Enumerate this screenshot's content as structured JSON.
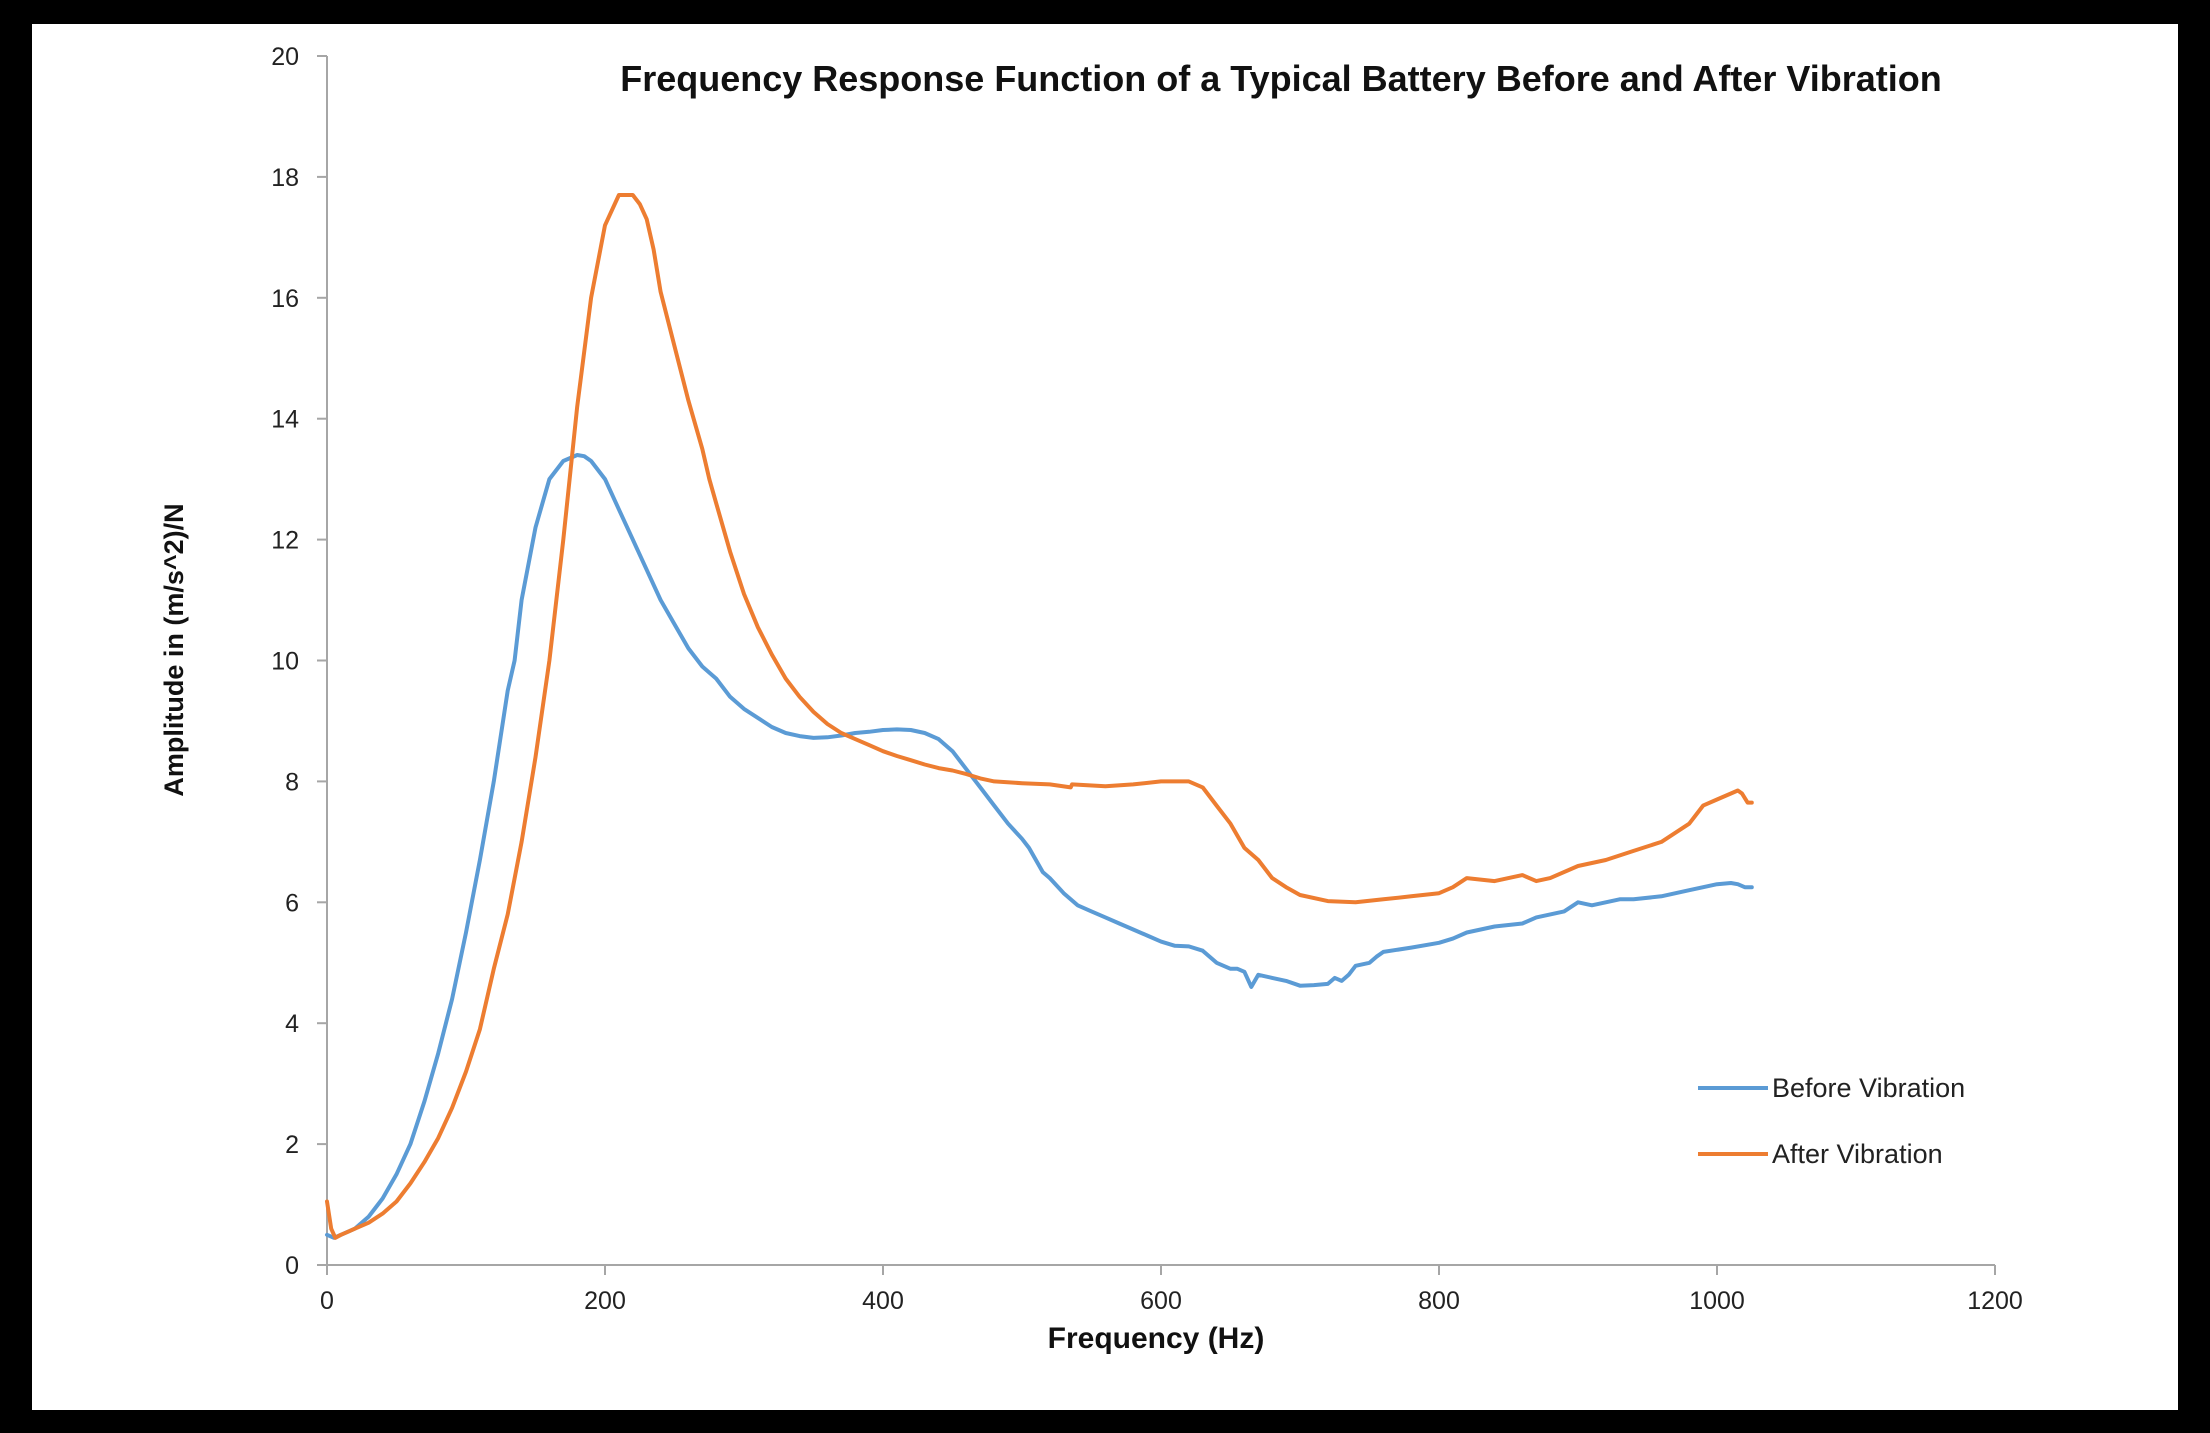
{
  "chart_data": {
    "type": "line",
    "title": "Frequency Response Function of a Typical Battery Before and After Vibration",
    "xlabel": "Frequency (Hz)",
    "ylabel": "Amplitude in (m/s^2)/N",
    "xlim": [
      0,
      1200
    ],
    "ylim": [
      0,
      20
    ],
    "xticks": [
      0,
      200,
      400,
      600,
      800,
      1000,
      1200
    ],
    "yticks": [
      0,
      2,
      4,
      6,
      8,
      10,
      12,
      14,
      16,
      18,
      20
    ],
    "grid": false,
    "legend_position": "bottom-right",
    "series": [
      {
        "name": "Before Vibration",
        "color": "#5B9BD5",
        "x": [
          0,
          5,
          10,
          20,
          30,
          40,
          50,
          60,
          70,
          80,
          90,
          100,
          110,
          120,
          130,
          135,
          140,
          150,
          160,
          170,
          180,
          185,
          190,
          200,
          210,
          220,
          230,
          240,
          250,
          260,
          270,
          275,
          280,
          290,
          300,
          310,
          320,
          330,
          340,
          350,
          360,
          370,
          380,
          390,
          400,
          410,
          420,
          430,
          440,
          450,
          460,
          470,
          480,
          490,
          500,
          505,
          510,
          515,
          520,
          530,
          540,
          550,
          560,
          570,
          580,
          590,
          600,
          610,
          620,
          630,
          640,
          650,
          655,
          660,
          665,
          670,
          680,
          690,
          700,
          710,
          720,
          725,
          730,
          735,
          740,
          750,
          755,
          760,
          780,
          800,
          810,
          820,
          840,
          860,
          870,
          880,
          890,
          900,
          910,
          920,
          930,
          940,
          960,
          980,
          1000,
          1010,
          1015,
          1020,
          1025
        ],
        "values": [
          0.5,
          0.45,
          0.5,
          0.6,
          0.8,
          1.1,
          1.5,
          2.0,
          2.7,
          3.5,
          4.4,
          5.5,
          6.7,
          8.0,
          9.5,
          10.0,
          11.0,
          12.2,
          13.0,
          13.3,
          13.4,
          13.38,
          13.3,
          13.0,
          12.5,
          12.0,
          11.5,
          11.0,
          10.6,
          10.2,
          9.9,
          9.8,
          9.7,
          9.4,
          9.2,
          9.05,
          8.9,
          8.8,
          8.75,
          8.72,
          8.73,
          8.76,
          8.8,
          8.82,
          8.85,
          8.86,
          8.85,
          8.8,
          8.7,
          8.5,
          8.2,
          7.9,
          7.6,
          7.3,
          7.05,
          6.9,
          6.7,
          6.5,
          6.4,
          6.15,
          5.95,
          5.85,
          5.75,
          5.65,
          5.55,
          5.45,
          5.35,
          5.28,
          5.27,
          5.2,
          5.0,
          4.9,
          4.9,
          4.85,
          4.6,
          4.8,
          4.75,
          4.7,
          4.62,
          4.63,
          4.65,
          4.75,
          4.7,
          4.8,
          4.95,
          5.0,
          5.1,
          5.18,
          5.25,
          5.33,
          5.4,
          5.5,
          5.6,
          5.65,
          5.75,
          5.8,
          5.85,
          6.0,
          5.95,
          6.0,
          6.05,
          6.05,
          6.1,
          6.2,
          6.3,
          6.32,
          6.3,
          6.25,
          6.25
        ]
      },
      {
        "name": "After Vibration",
        "color": "#ED7D31",
        "x": [
          0,
          3,
          6,
          10,
          15,
          20,
          30,
          40,
          50,
          60,
          70,
          80,
          90,
          100,
          110,
          120,
          130,
          140,
          150,
          160,
          170,
          180,
          190,
          200,
          210,
          220,
          225,
          230,
          235,
          240,
          250,
          260,
          270,
          275,
          280,
          290,
          300,
          310,
          320,
          330,
          340,
          350,
          360,
          370,
          380,
          390,
          400,
          410,
          420,
          430,
          440,
          450,
          460,
          470,
          480,
          500,
          520,
          535,
          536,
          560,
          580,
          600,
          620,
          630,
          640,
          650,
          660,
          670,
          680,
          690,
          700,
          720,
          740,
          760,
          780,
          800,
          810,
          820,
          840,
          860,
          870,
          880,
          900,
          920,
          940,
          960,
          980,
          990,
          1000,
          1010,
          1015,
          1018,
          1022,
          1025
        ],
        "values": [
          1.05,
          0.6,
          0.45,
          0.5,
          0.55,
          0.6,
          0.7,
          0.85,
          1.05,
          1.35,
          1.7,
          2.1,
          2.6,
          3.2,
          3.9,
          4.9,
          5.8,
          7.0,
          8.4,
          10.0,
          12.0,
          14.2,
          16.0,
          17.2,
          17.7,
          17.7,
          17.55,
          17.3,
          16.8,
          16.1,
          15.2,
          14.3,
          13.5,
          13.0,
          12.6,
          11.8,
          11.1,
          10.55,
          10.1,
          9.7,
          9.4,
          9.15,
          8.95,
          8.8,
          8.7,
          8.6,
          8.5,
          8.42,
          8.35,
          8.28,
          8.22,
          8.18,
          8.12,
          8.05,
          8.0,
          7.97,
          7.95,
          7.9,
          7.95,
          7.92,
          7.95,
          8.0,
          8.0,
          7.9,
          7.6,
          7.3,
          6.9,
          6.7,
          6.4,
          6.25,
          6.12,
          6.02,
          6.0,
          6.05,
          6.1,
          6.15,
          6.25,
          6.4,
          6.35,
          6.45,
          6.35,
          6.4,
          6.6,
          6.7,
          6.85,
          7.0,
          7.3,
          7.6,
          7.7,
          7.8,
          7.85,
          7.8,
          7.65,
          7.65
        ]
      }
    ]
  }
}
